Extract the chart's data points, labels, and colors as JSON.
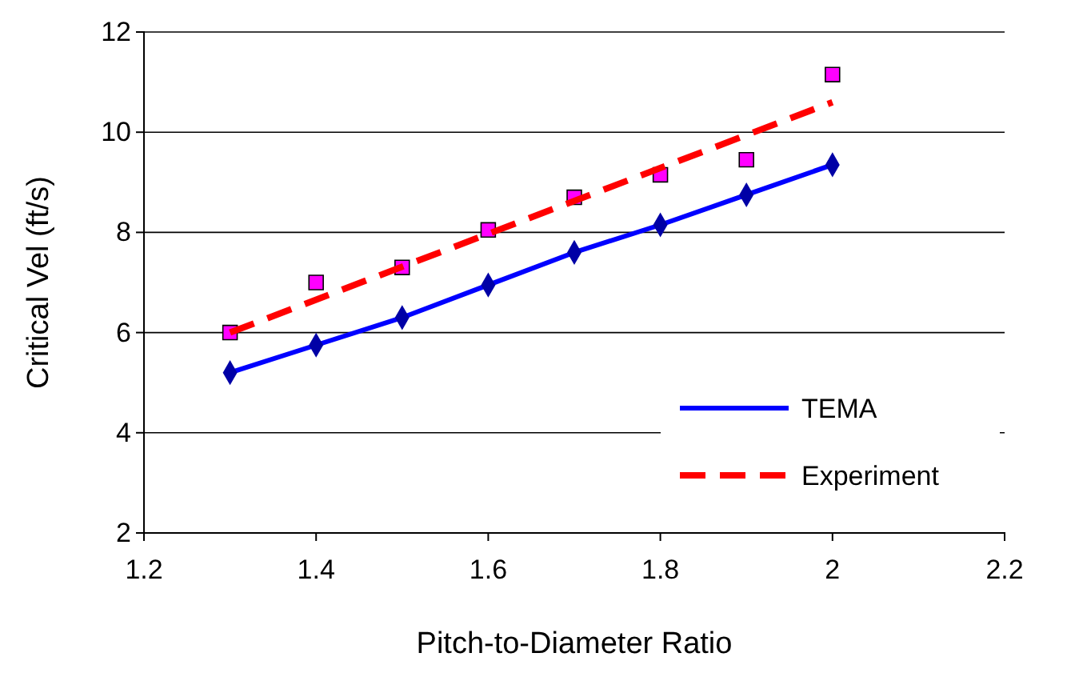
{
  "chart_data": {
    "type": "line",
    "xlabel": "Pitch-to-Diameter Ratio",
    "ylabel": "Critical Vel (ft/s)",
    "x": [
      1.3,
      1.4,
      1.5,
      1.6,
      1.7,
      1.8,
      1.9,
      2.0
    ],
    "series": [
      {
        "name": "TEMA",
        "color": "#0000ff",
        "marker": "diamond",
        "line_style": "solid",
        "values": [
          5.2,
          5.75,
          6.3,
          6.95,
          7.6,
          8.15,
          8.75,
          9.35
        ]
      },
      {
        "type": "scatter",
        "color": "#ff00ff",
        "marker": "square",
        "values": [
          6.0,
          7.0,
          7.3,
          8.05,
          8.7,
          9.15,
          9.45,
          11.15
        ]
      },
      {
        "name": "Experiment",
        "type": "line",
        "color": "#ff0000",
        "marker": "none",
        "line_style": "dashed",
        "x": [
          1.3,
          2.0
        ],
        "values": [
          6.0,
          10.6
        ]
      }
    ],
    "xlim": [
      1.2,
      2.2
    ],
    "xticks": [
      1.2,
      1.4,
      1.6,
      1.8,
      2,
      2.2
    ],
    "ylim": [
      2,
      12
    ],
    "yticks": [
      2,
      4,
      6,
      8,
      10,
      12
    ],
    "grid": "y",
    "legend": "bottom right"
  }
}
